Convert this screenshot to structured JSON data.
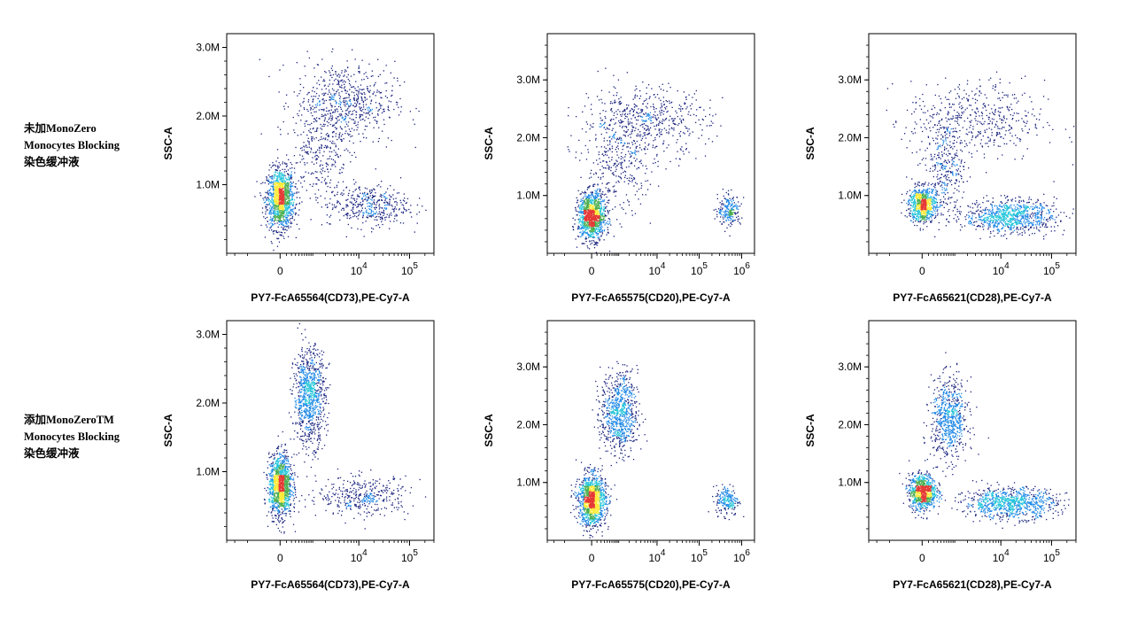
{
  "row_labels": [
    {
      "line1": "未加MonoZero",
      "line2": "Monocytes Blocking",
      "line3": "染色缓冲液"
    },
    {
      "line1": "添加MonoZeroTM",
      "line2": "Monocytes Blocking",
      "line3": "染色缓冲液"
    }
  ],
  "colors": {
    "low": "#1a237e",
    "mid": "#1e88e5",
    "mid2": "#26c6da",
    "high": "#4caf50",
    "peak": "#ffeb3b",
    "max": "#e53935"
  },
  "chart_data": [
    {
      "type": "scatter",
      "row": 0,
      "col": 0,
      "xlabel": "PY7-FcA65564(CD73),PE-Cy7-A",
      "ylabel": "SSC-A",
      "xscale": "biexponential",
      "xlim": [
        -3000,
        300000
      ],
      "ylim": [
        0,
        3200000
      ],
      "yticks": [
        {
          "v": 1000000,
          "label": "1.0M"
        },
        {
          "v": 2000000,
          "label": "2.0M"
        },
        {
          "v": 3000000,
          "label": "3.0M"
        }
      ],
      "xticks": [
        {
          "v": 0,
          "base": "0",
          "exp": ""
        },
        {
          "v": 10000,
          "base": "10",
          "exp": "4"
        },
        {
          "v": 100000,
          "base": "10",
          "exp": "5"
        }
      ],
      "clusters": [
        {
          "x": 0,
          "y": 800000,
          "sx": 0.06,
          "sy": 220000,
          "n": 1300
        },
        {
          "x": 5000,
          "y": 2200000,
          "sx": 0.22,
          "sy": 300000,
          "n": 650
        },
        {
          "x": 15000,
          "y": 700000,
          "sx": 0.18,
          "sy": 150000,
          "n": 420
        },
        {
          "x": 1500,
          "y": 1500000,
          "sx": 0.12,
          "sy": 350000,
          "n": 250
        }
      ]
    },
    {
      "type": "scatter",
      "row": 0,
      "col": 1,
      "xlabel": "PY7-FcA65575(CD20),PE-Cy7-A",
      "ylabel": "SSC-A",
      "xscale": "biexponential",
      "xlim": [
        -3000,
        2000000
      ],
      "ylim": [
        0,
        3800000
      ],
      "yticks": [
        {
          "v": 1000000,
          "label": "1.0M"
        },
        {
          "v": 2000000,
          "label": "2.0M"
        },
        {
          "v": 3000000,
          "label": "3.0M"
        }
      ],
      "xticks": [
        {
          "v": 0,
          "base": "0",
          "exp": ""
        },
        {
          "v": 10000,
          "base": "10",
          "exp": "4"
        },
        {
          "v": 100000,
          "base": "10",
          "exp": "5"
        },
        {
          "v": 1000000,
          "base": "10",
          "exp": "6"
        }
      ],
      "clusters": [
        {
          "x": 0,
          "y": 650000,
          "sx": 0.06,
          "sy": 200000,
          "n": 1200
        },
        {
          "x": 5000,
          "y": 2300000,
          "sx": 0.28,
          "sy": 300000,
          "n": 550
        },
        {
          "x": 500000,
          "y": 750000,
          "sx": 0.05,
          "sy": 130000,
          "n": 220
        },
        {
          "x": 1000,
          "y": 1500000,
          "sx": 0.15,
          "sy": 400000,
          "n": 300
        }
      ]
    },
    {
      "type": "scatter",
      "row": 0,
      "col": 2,
      "xlabel": "PY7-FcA65621(CD28),PE-Cy7-A",
      "ylabel": "SSC-A",
      "xscale": "biexponential",
      "xlim": [
        -3000,
        300000
      ],
      "ylim": [
        0,
        3800000
      ],
      "yticks": [
        {
          "v": 1000000,
          "label": "1.0M"
        },
        {
          "v": 2000000,
          "label": "2.0M"
        },
        {
          "v": 3000000,
          "label": "3.0M"
        }
      ],
      "xticks": [
        {
          "v": 0,
          "base": "0",
          "exp": ""
        },
        {
          "v": 10000,
          "base": "10",
          "exp": "4"
        },
        {
          "v": 100000,
          "base": "10",
          "exp": "5"
        }
      ],
      "clusters": [
        {
          "x": 0,
          "y": 850000,
          "sx": 0.06,
          "sy": 150000,
          "n": 800
        },
        {
          "x": 15000,
          "y": 650000,
          "sx": 0.2,
          "sy": 140000,
          "n": 900
        },
        {
          "x": 3000,
          "y": 2300000,
          "sx": 0.3,
          "sy": 350000,
          "n": 500
        },
        {
          "x": 500,
          "y": 1500000,
          "sx": 0.08,
          "sy": 400000,
          "n": 300
        }
      ]
    },
    {
      "type": "scatter",
      "row": 1,
      "col": 0,
      "xlabel": "PY7-FcA65564(CD73),PE-Cy7-A",
      "ylabel": "SSC-A",
      "xscale": "biexponential",
      "xlim": [
        -3000,
        300000
      ],
      "ylim": [
        0,
        3200000
      ],
      "yticks": [
        {
          "v": 1000000,
          "label": "1.0M"
        },
        {
          "v": 2000000,
          "label": "2.0M"
        },
        {
          "v": 3000000,
          "label": "3.0M"
        }
      ],
      "xticks": [
        {
          "v": 0,
          "base": "0",
          "exp": ""
        },
        {
          "v": 10000,
          "base": "10",
          "exp": "4"
        },
        {
          "v": 100000,
          "base": "10",
          "exp": "5"
        }
      ],
      "clusters": [
        {
          "x": 0,
          "y": 800000,
          "sx": 0.05,
          "sy": 220000,
          "n": 1300
        },
        {
          "x": 800,
          "y": 2100000,
          "sx": 0.07,
          "sy": 350000,
          "n": 900
        },
        {
          "x": 12000,
          "y": 650000,
          "sx": 0.2,
          "sy": 140000,
          "n": 380
        }
      ]
    },
    {
      "type": "scatter",
      "row": 1,
      "col": 1,
      "xlabel": "PY7-FcA65575(CD20),PE-Cy7-A",
      "ylabel": "SSC-A",
      "xscale": "biexponential",
      "xlim": [
        -3000,
        2000000
      ],
      "ylim": [
        0,
        3800000
      ],
      "yticks": [
        {
          "v": 1000000,
          "label": "1.0M"
        },
        {
          "v": 2000000,
          "label": "2.0M"
        },
        {
          "v": 3000000,
          "label": "3.0M"
        }
      ],
      "xticks": [
        {
          "v": 0,
          "base": "0",
          "exp": ""
        },
        {
          "v": 10000,
          "base": "10",
          "exp": "4"
        },
        {
          "v": 100000,
          "base": "10",
          "exp": "5"
        },
        {
          "v": 1000000,
          "base": "10",
          "exp": "6"
        }
      ],
      "clusters": [
        {
          "x": 0,
          "y": 700000,
          "sx": 0.06,
          "sy": 220000,
          "n": 1300
        },
        {
          "x": 1000,
          "y": 2200000,
          "sx": 0.08,
          "sy": 350000,
          "n": 800
        },
        {
          "x": 450000,
          "y": 700000,
          "sx": 0.05,
          "sy": 130000,
          "n": 200
        }
      ]
    },
    {
      "type": "scatter",
      "row": 1,
      "col": 2,
      "xlabel": "PY7-FcA65621(CD28),PE-Cy7-A",
      "ylabel": "SSC-A",
      "xscale": "biexponential",
      "xlim": [
        -3000,
        300000
      ],
      "ylim": [
        0,
        3800000
      ],
      "yticks": [
        {
          "v": 1000000,
          "label": "1.0M"
        },
        {
          "v": 2000000,
          "label": "2.0M"
        },
        {
          "v": 3000000,
          "label": "3.0M"
        }
      ],
      "xticks": [
        {
          "v": 0,
          "base": "0",
          "exp": ""
        },
        {
          "v": 10000,
          "base": "10",
          "exp": "4"
        },
        {
          "v": 100000,
          "base": "10",
          "exp": "5"
        }
      ],
      "clusters": [
        {
          "x": 0,
          "y": 850000,
          "sx": 0.06,
          "sy": 150000,
          "n": 900
        },
        {
          "x": 700,
          "y": 2100000,
          "sx": 0.08,
          "sy": 350000,
          "n": 700
        },
        {
          "x": 15000,
          "y": 650000,
          "sx": 0.2,
          "sy": 130000,
          "n": 900
        }
      ]
    }
  ]
}
